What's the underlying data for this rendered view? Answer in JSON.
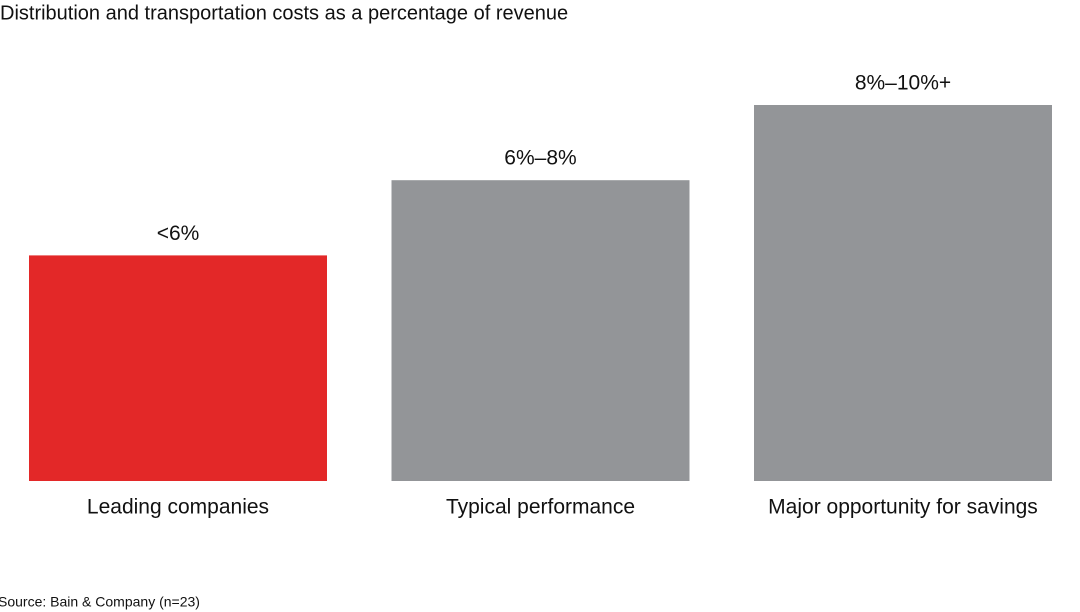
{
  "chart_data": {
    "type": "bar",
    "title": "Distribution and transportation costs as a percentage of revenue",
    "categories": [
      "Leading companies",
      "Typical performance",
      "Major opportunity for savings"
    ],
    "values": [
      6,
      8,
      10
    ],
    "value_labels": [
      "<6%",
      "6%–8%",
      "8%–10%+"
    ],
    "colors": [
      "#e32828",
      "#939598",
      "#939598"
    ],
    "source": "Source: Bain & Company (n=23)"
  }
}
